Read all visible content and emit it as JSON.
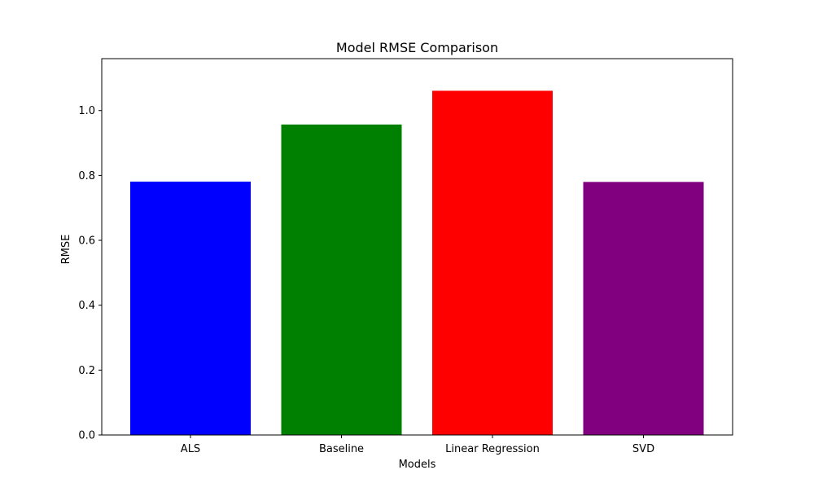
{
  "chart_data": {
    "type": "bar",
    "title": "Model RMSE Comparison",
    "xlabel": "Models",
    "ylabel": "RMSE",
    "categories": [
      "ALS",
      "Baseline",
      "Linear Regression",
      "SVD"
    ],
    "values": [
      0.781,
      0.957,
      1.061,
      0.78
    ],
    "colors": [
      "#0000ff",
      "#008000",
      "#ff0000",
      "#800080"
    ],
    "ylim": [
      0,
      1.16
    ],
    "yticks": [
      0.0,
      0.2,
      0.4,
      0.6,
      0.8,
      1.0
    ],
    "ytick_labels": [
      "0.0",
      "0.2",
      "0.4",
      "0.6",
      "0.8",
      "1.0"
    ],
    "grid": false,
    "legend": "none"
  }
}
